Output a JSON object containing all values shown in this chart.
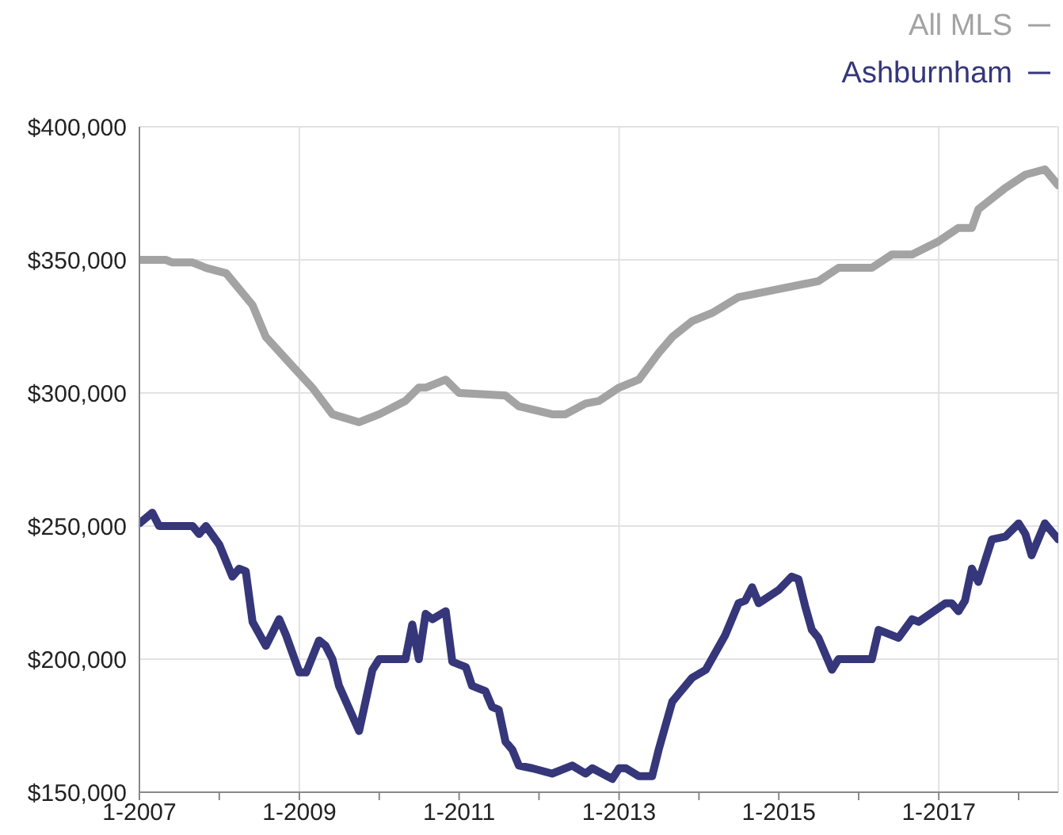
{
  "chart_data": {
    "type": "line",
    "series": [
      {
        "name": "All MLS",
        "color": "#a3a3a3",
        "x": [
          "2007-01",
          "2007-05",
          "2007-06",
          "2007-09",
          "2007-11",
          "2008-02",
          "2008-06",
          "2008-08",
          "2008-12",
          "2009-03",
          "2009-06",
          "2009-10",
          "2010-01",
          "2010-05",
          "2010-07",
          "2010-08",
          "2010-11",
          "2011-01",
          "2011-08",
          "2011-10",
          "2012-03",
          "2012-05",
          "2012-08",
          "2012-10",
          "2013-01",
          "2013-04",
          "2013-07",
          "2013-09",
          "2013-12",
          "2014-03",
          "2014-07",
          "2015-01",
          "2015-07",
          "2015-10",
          "2016-03",
          "2016-06",
          "2016-09",
          "2017-01",
          "2017-04",
          "2017-06",
          "2017-07",
          "2017-11",
          "2018-02",
          "2018-05",
          "2018-07"
        ],
        "values": [
          350000,
          350000,
          349000,
          349000,
          347000,
          345000,
          333000,
          321000,
          310000,
          302000,
          292000,
          289000,
          292000,
          297000,
          302000,
          302000,
          305000,
          300000,
          299000,
          295000,
          292000,
          292000,
          296000,
          297000,
          302000,
          305000,
          315000,
          321000,
          327000,
          330000,
          336000,
          339000,
          342000,
          347000,
          347000,
          352000,
          352000,
          357000,
          362000,
          362000,
          369000,
          377000,
          382000,
          384000,
          378000
        ]
      },
      {
        "name": "Ashburnham",
        "color": "#36367a",
        "x": [
          "2007-01",
          "2007-03",
          "2007-04",
          "2007-09",
          "2007-10",
          "2007-11",
          "2008-01",
          "2008-03",
          "2008-04",
          "2008-05",
          "2008-06",
          "2008-08",
          "2008-10",
          "2008-11",
          "2009-01",
          "2009-02",
          "2009-04",
          "2009-05",
          "2009-06",
          "2009-07",
          "2009-10",
          "2009-12",
          "2010-01",
          "2010-05",
          "2010-06",
          "2010-07",
          "2010-08",
          "2010-09",
          "2010-11",
          "2010-12",
          "2011-02",
          "2011-03",
          "2011-05",
          "2011-06",
          "2011-07",
          "2011-08",
          "2011-09",
          "2011-10",
          "2011-12",
          "2012-03",
          "2012-06",
          "2012-08",
          "2012-09",
          "2012-12",
          "2013-01",
          "2013-02",
          "2013-04",
          "2013-06",
          "2013-07",
          "2013-09",
          "2013-10",
          "2013-12",
          "2014-02",
          "2014-05",
          "2014-07",
          "2014-08",
          "2014-09",
          "2014-10",
          "2015-01",
          "2015-03",
          "2015-04",
          "2015-05",
          "2015-06",
          "2015-07",
          "2015-09",
          "2015-10",
          "2016-03",
          "2016-04",
          "2016-07",
          "2016-09",
          "2016-10",
          "2017-02",
          "2017-03",
          "2017-04",
          "2017-05",
          "2017-06",
          "2017-07",
          "2017-09",
          "2017-11",
          "2018-01",
          "2018-02",
          "2018-03",
          "2018-05",
          "2018-07"
        ],
        "values": [
          251000,
          255000,
          250000,
          250000,
          247000,
          250000,
          243000,
          231000,
          234000,
          233000,
          214000,
          205000,
          215000,
          209000,
          195000,
          195000,
          207000,
          205000,
          200000,
          190000,
          173000,
          196000,
          200000,
          200000,
          213000,
          200000,
          217000,
          215000,
          218000,
          199000,
          197000,
          190000,
          188000,
          182000,
          181000,
          169000,
          166000,
          160000,
          159000,
          157000,
          160000,
          157000,
          159000,
          155000,
          159000,
          159000,
          156000,
          156000,
          166000,
          184000,
          187000,
          193000,
          196000,
          209000,
          221000,
          222000,
          227000,
          221000,
          226000,
          231000,
          230000,
          220000,
          211000,
          208000,
          196000,
          200000,
          200000,
          211000,
          208000,
          215000,
          214000,
          221000,
          221000,
          218000,
          222000,
          234000,
          229000,
          245000,
          246000,
          251000,
          247000,
          239000,
          251000,
          245000
        ]
      }
    ],
    "xlim": [
      "2007-01",
      "2018-07"
    ],
    "xticks": [
      {
        "value": "2007-01",
        "label": "1-2007"
      },
      {
        "value": "2008-01",
        "label": null
      },
      {
        "value": "2009-01",
        "label": "1-2009"
      },
      {
        "value": "2010-01",
        "label": null
      },
      {
        "value": "2011-01",
        "label": "1-2011"
      },
      {
        "value": "2012-01",
        "label": null
      },
      {
        "value": "2013-01",
        "label": "1-2013"
      },
      {
        "value": "2014-01",
        "label": null
      },
      {
        "value": "2015-01",
        "label": "1-2015"
      },
      {
        "value": "2016-01",
        "label": null
      },
      {
        "value": "2017-01",
        "label": "1-2017"
      },
      {
        "value": "2018-01",
        "label": null
      }
    ],
    "ylim": [
      150000,
      400000
    ],
    "yticks": [
      {
        "value": 150000,
        "label": "$150,000"
      },
      {
        "value": 200000,
        "label": "$200,000"
      },
      {
        "value": 250000,
        "label": "$250,000"
      },
      {
        "value": 300000,
        "label": "$300,000"
      },
      {
        "value": 350000,
        "label": "$350,000"
      },
      {
        "value": 400000,
        "label": "$400,000"
      }
    ],
    "grid": true,
    "legend": "top right",
    "marker": "none",
    "line_style": "solid"
  }
}
